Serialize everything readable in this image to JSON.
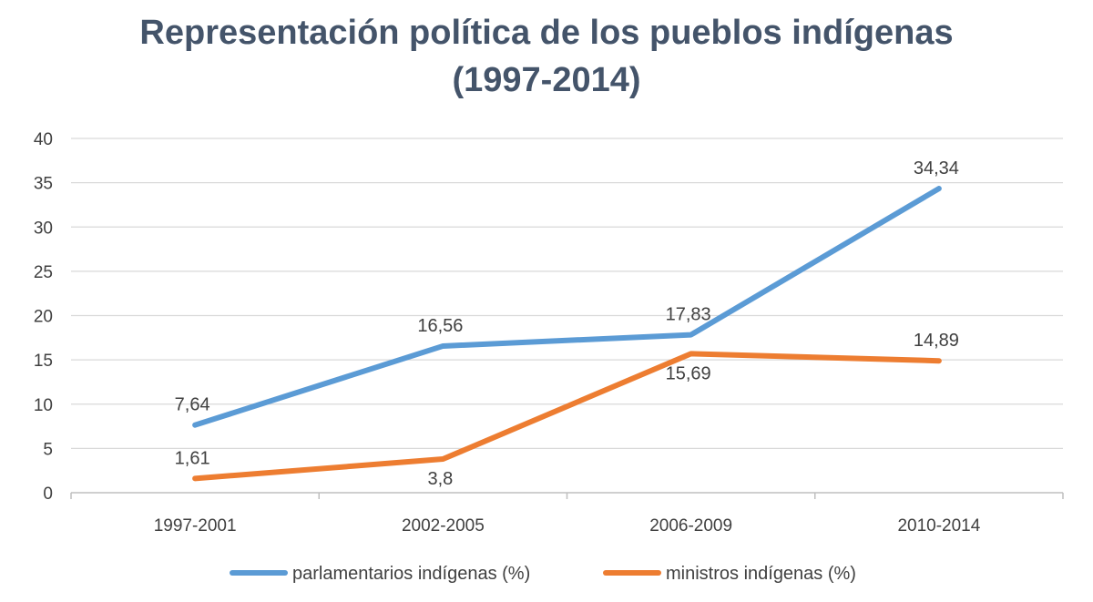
{
  "chart_data": {
    "type": "line",
    "title_lines": [
      "Representación política de los pueblos indígenas",
      "(1997-2014)"
    ],
    "categories": [
      "1997-2001",
      "2002-2005",
      "2006-2009",
      "2010-2014"
    ],
    "ylim": [
      0,
      40
    ],
    "yticks": [
      0,
      5,
      10,
      15,
      20,
      25,
      30,
      35,
      40
    ],
    "grid": true,
    "legend_position": "bottom",
    "series": [
      {
        "name": "parlamentarios indígenas (%)",
        "color": "#5b9bd5",
        "values": [
          7.64,
          16.56,
          17.83,
          34.34
        ],
        "labels": [
          "7,64",
          "16,56",
          "17,83",
          "34,34"
        ],
        "label_side": [
          "above",
          "above",
          "above",
          "above"
        ]
      },
      {
        "name": "ministros indígenas (%)",
        "color": "#ed7d31",
        "values": [
          1.61,
          3.8,
          15.69,
          14.89
        ],
        "labels": [
          "1,61",
          "3,8",
          "15,69",
          "14,89"
        ],
        "label_side": [
          "above",
          "below",
          "below",
          "above"
        ]
      }
    ]
  }
}
